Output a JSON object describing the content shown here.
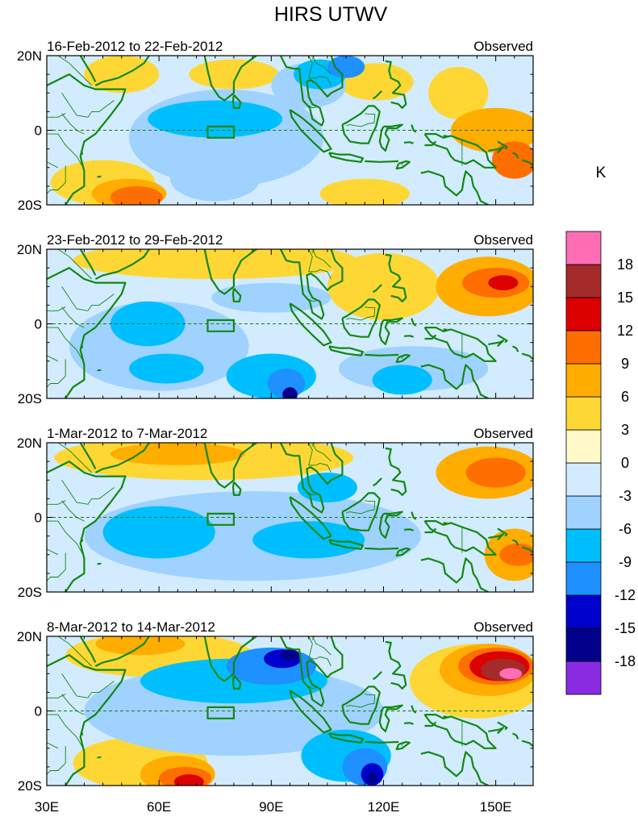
{
  "chart_data": {
    "type": "heatmap",
    "title": "HIRS UTWV",
    "colorbar": {
      "unit": "K",
      "levels": [
        "-18",
        "-15",
        "-12",
        "-9",
        "-6",
        "-3",
        "0",
        "3",
        "6",
        "9",
        "12",
        "15",
        "18"
      ],
      "colors": [
        "#8a2be2",
        "#00008b",
        "#0000cd",
        "#1e90ff",
        "#00bfff",
        "#a0d2ff",
        "#d2ebff",
        "#fffac8",
        "#ffd734",
        "#ffad00",
        "#ff6e00",
        "#dc0000",
        "#a52a2a",
        "#ff6eb4"
      ]
    },
    "xaxis": {
      "range": [
        30,
        160
      ],
      "ticks": [
        "30E",
        "60E",
        "90E",
        "120E",
        "150E"
      ],
      "tick_values": [
        30,
        60,
        90,
        120,
        150
      ]
    },
    "yaxis": {
      "range": [
        -20,
        20
      ],
      "ticks": [
        "20N",
        "0",
        "20S"
      ],
      "tick_values": [
        20,
        0,
        -20
      ]
    },
    "panels": [
      {
        "left_label": "16-Feb-2012 to 22-Feb-2012",
        "right_label": "Observed",
        "blobs": [
          {
            "lon": 50,
            "lat": 15,
            "rx": 10,
            "ry": 5,
            "level": 3
          },
          {
            "lon": 80,
            "lat": 15,
            "rx": 12,
            "ry": 4,
            "level": 3
          },
          {
            "lon": 118,
            "lat": 13,
            "rx": 10,
            "ry": 5,
            "level": 3
          },
          {
            "lon": 140,
            "lat": 10,
            "rx": 8,
            "ry": 7,
            "level": 3
          },
          {
            "lon": 150,
            "lat": 0,
            "rx": 12,
            "ry": 6,
            "level": 6
          },
          {
            "lon": 155,
            "lat": -8,
            "rx": 6,
            "ry": 5,
            "level": 9
          },
          {
            "lon": 45,
            "lat": -14,
            "rx": 14,
            "ry": 6,
            "level": 3
          },
          {
            "lon": 52,
            "lat": -17,
            "rx": 10,
            "ry": 4,
            "level": 6
          },
          {
            "lon": 54,
            "lat": -18,
            "rx": 7,
            "ry": 3,
            "level": 9
          },
          {
            "lon": 115,
            "lat": -17,
            "rx": 12,
            "ry": 4,
            "level": 3
          },
          {
            "lon": 78,
            "lat": -2,
            "rx": 26,
            "ry": 13,
            "level": -3
          },
          {
            "lon": 75,
            "lat": 3,
            "rx": 18,
            "ry": 5,
            "level": -6
          },
          {
            "lon": 75,
            "lat": -13,
            "rx": 12,
            "ry": 6,
            "level": -3
          },
          {
            "lon": 100,
            "lat": 12,
            "rx": 10,
            "ry": 6,
            "level": -3
          },
          {
            "lon": 103,
            "lat": 15,
            "rx": 7,
            "ry": 4,
            "level": -6
          },
          {
            "lon": 110,
            "lat": 17,
            "rx": 5,
            "ry": 3,
            "level": -9
          }
        ]
      },
      {
        "left_label": "23-Feb-2012 to 29-Feb-2012",
        "right_label": "Observed",
        "blobs": [
          {
            "lon": 75,
            "lat": 17,
            "rx": 38,
            "ry": 5,
            "level": 3
          },
          {
            "lon": 120,
            "lat": 10,
            "rx": 15,
            "ry": 9,
            "level": 3
          },
          {
            "lon": 148,
            "lat": 10,
            "rx": 14,
            "ry": 8,
            "level": 6
          },
          {
            "lon": 150,
            "lat": 11,
            "rx": 9,
            "ry": 4,
            "level": 9
          },
          {
            "lon": 152,
            "lat": 11,
            "rx": 4,
            "ry": 2,
            "level": 12
          },
          {
            "lon": 60,
            "lat": -6,
            "rx": 24,
            "ry": 12,
            "level": -3
          },
          {
            "lon": 57,
            "lat": 0,
            "rx": 10,
            "ry": 6,
            "level": -6
          },
          {
            "lon": 62,
            "lat": -12,
            "rx": 10,
            "ry": 4,
            "level": -6
          },
          {
            "lon": 90,
            "lat": 7,
            "rx": 16,
            "ry": 4,
            "level": -3
          },
          {
            "lon": 90,
            "lat": -14,
            "rx": 12,
            "ry": 6,
            "level": -6
          },
          {
            "lon": 94,
            "lat": -16,
            "rx": 5,
            "ry": 4,
            "level": -9
          },
          {
            "lon": 95,
            "lat": -19,
            "rx": 2,
            "ry": 2,
            "level": -15
          },
          {
            "lon": 128,
            "lat": -12,
            "rx": 20,
            "ry": 6,
            "level": -3
          },
          {
            "lon": 125,
            "lat": -15,
            "rx": 8,
            "ry": 4,
            "level": -6
          }
        ]
      },
      {
        "left_label": "1-Mar-2012 to 7-Mar-2012",
        "right_label": "Observed",
        "blobs": [
          {
            "lon": 72,
            "lat": 16,
            "rx": 40,
            "ry": 6,
            "level": 3
          },
          {
            "lon": 65,
            "lat": 17,
            "rx": 18,
            "ry": 3,
            "level": 6
          },
          {
            "lon": 148,
            "lat": 12,
            "rx": 14,
            "ry": 7,
            "level": 6
          },
          {
            "lon": 150,
            "lat": 12,
            "rx": 8,
            "ry": 4,
            "level": 9
          },
          {
            "lon": 155,
            "lat": -10,
            "rx": 8,
            "ry": 7,
            "level": 6
          },
          {
            "lon": 156,
            "lat": -10,
            "rx": 5,
            "ry": 3,
            "level": 9
          },
          {
            "lon": 85,
            "lat": -5,
            "rx": 45,
            "ry": 12,
            "level": -3
          },
          {
            "lon": 60,
            "lat": -4,
            "rx": 15,
            "ry": 7,
            "level": -6
          },
          {
            "lon": 100,
            "lat": -6,
            "rx": 15,
            "ry": 5,
            "level": -6
          },
          {
            "lon": 105,
            "lat": 8,
            "rx": 8,
            "ry": 4,
            "level": -6
          }
        ]
      },
      {
        "left_label": "8-Mar-2012 to 14-Mar-2012",
        "right_label": "Observed",
        "blobs": [
          {
            "lon": 60,
            "lat": 15,
            "rx": 25,
            "ry": 6,
            "level": 3
          },
          {
            "lon": 55,
            "lat": 18,
            "rx": 12,
            "ry": 3,
            "level": 6
          },
          {
            "lon": 55,
            "lat": -14,
            "rx": 18,
            "ry": 7,
            "level": 3
          },
          {
            "lon": 65,
            "lat": -17,
            "rx": 10,
            "ry": 5,
            "level": 6
          },
          {
            "lon": 67,
            "lat": -18,
            "rx": 7,
            "ry": 3,
            "level": 9
          },
          {
            "lon": 68,
            "lat": -19,
            "rx": 4,
            "ry": 2,
            "level": 12
          },
          {
            "lon": 145,
            "lat": 8,
            "rx": 18,
            "ry": 10,
            "level": 3
          },
          {
            "lon": 148,
            "lat": 11,
            "rx": 13,
            "ry": 7,
            "level": 6
          },
          {
            "lon": 150,
            "lat": 12,
            "rx": 10,
            "ry": 5,
            "level": 9
          },
          {
            "lon": 151,
            "lat": 12,
            "rx": 8,
            "ry": 4,
            "level": 12
          },
          {
            "lon": 152,
            "lat": 11,
            "rx": 6,
            "ry": 3,
            "level": 15
          },
          {
            "lon": 154,
            "lat": 10,
            "rx": 3,
            "ry": 1.5,
            "level": 18
          },
          {
            "lon": 80,
            "lat": 0,
            "rx": 40,
            "ry": 12,
            "level": -3
          },
          {
            "lon": 80,
            "lat": 8,
            "rx": 25,
            "ry": 6,
            "level": -6
          },
          {
            "lon": 90,
            "lat": 12,
            "rx": 12,
            "ry": 5,
            "level": -9
          },
          {
            "lon": 93,
            "lat": 14,
            "rx": 5,
            "ry": 2.5,
            "level": -12
          },
          {
            "lon": 95,
            "lat": 15,
            "rx": 2.5,
            "ry": 1.5,
            "level": -15
          },
          {
            "lon": 110,
            "lat": -12,
            "rx": 12,
            "ry": 7,
            "level": -6
          },
          {
            "lon": 115,
            "lat": -15,
            "rx": 6,
            "ry": 5,
            "level": -9
          },
          {
            "lon": 117,
            "lat": -17,
            "rx": 3,
            "ry": 3,
            "level": -12
          },
          {
            "lon": 117,
            "lat": -18,
            "rx": 1.5,
            "ry": 1.5,
            "level": -15
          }
        ]
      }
    ]
  }
}
